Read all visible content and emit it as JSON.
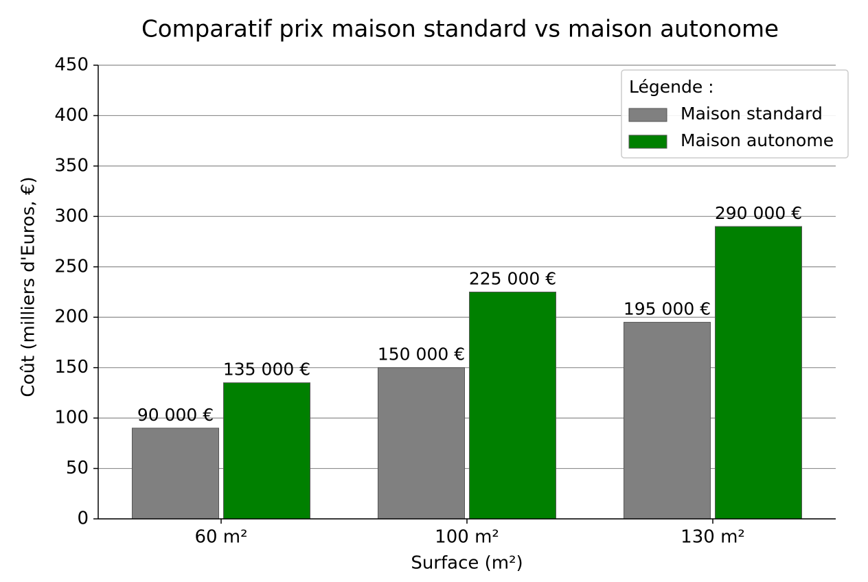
{
  "chart_data": {
    "type": "bar",
    "title": "Comparatif prix maison standard vs maison autonome",
    "x_label": "Surface (m²)",
    "y_label": "Coût (milliers d'Euros, €)",
    "categories": [
      "60 m²",
      "100 m²",
      "130 m²"
    ],
    "series": [
      {
        "name": "Maison standard",
        "color": "#808080",
        "values": [
          90,
          150,
          195
        ],
        "value_labels": [
          "90 000 €",
          "150 000 €",
          "195 000 €"
        ]
      },
      {
        "name": "Maison autonome",
        "color": "#008000",
        "values": [
          135,
          225,
          290
        ],
        "value_labels": [
          "135 000 €",
          "225 000 €",
          "290 000 €"
        ]
      }
    ],
    "ylim": [
      0,
      450
    ],
    "yticks": [
      0,
      50,
      100,
      150,
      200,
      250,
      300,
      350,
      400,
      450
    ],
    "grid": true,
    "legend_title": "Légende :",
    "legend_position": "upper right"
  }
}
